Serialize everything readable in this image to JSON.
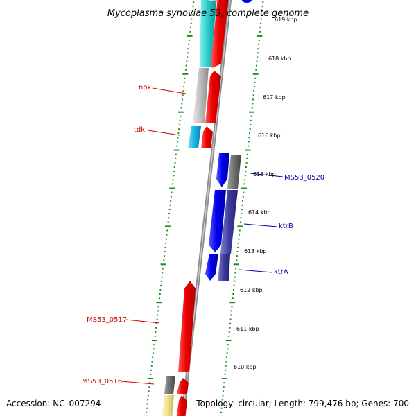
{
  "title": "Mycoplasma synoviae 53, complete genome",
  "footer": {
    "accession": "Accession: NC_007294",
    "topology": "Topology: circular; Length: 799,476 bp; Genes: 700"
  },
  "kbp_ticks": [
    "619 kbp",
    "618 kbp",
    "617 kbp",
    "616 kbp",
    "615 kbp",
    "614 kbp",
    "613 kbp",
    "612 kbp",
    "611 kbp",
    "610 kbp"
  ],
  "gene_labels": [
    {
      "text": "nox",
      "color": "#cc0000"
    },
    {
      "text": "tdk",
      "color": "#cc0000"
    },
    {
      "text": "MS53_0520",
      "color": "#0000aa"
    },
    {
      "text": "ktrB",
      "color": "#0000aa"
    },
    {
      "text": "ktrA",
      "color": "#0000aa"
    },
    {
      "text": "MS53_0517",
      "color": "#cc0000"
    },
    {
      "text": "MS53_0516",
      "color": "#cc0000"
    }
  ],
  "colors": {
    "forward_gene": "#e8000b",
    "reverse_gene": "#0000e6",
    "tick_green": "#1e8c1e",
    "backbone": "#8c8c8c",
    "cyan_feature": "#22c8c8",
    "light_blue_feature": "#18b4e6",
    "grey_feature": "#bdbdbd",
    "dark_grey_feature": "#6e6e6e",
    "indigo_feature": "#3c3ca0",
    "pale_yellow_feature": "#f0e090",
    "pink_feature": "#f0a0a0"
  }
}
